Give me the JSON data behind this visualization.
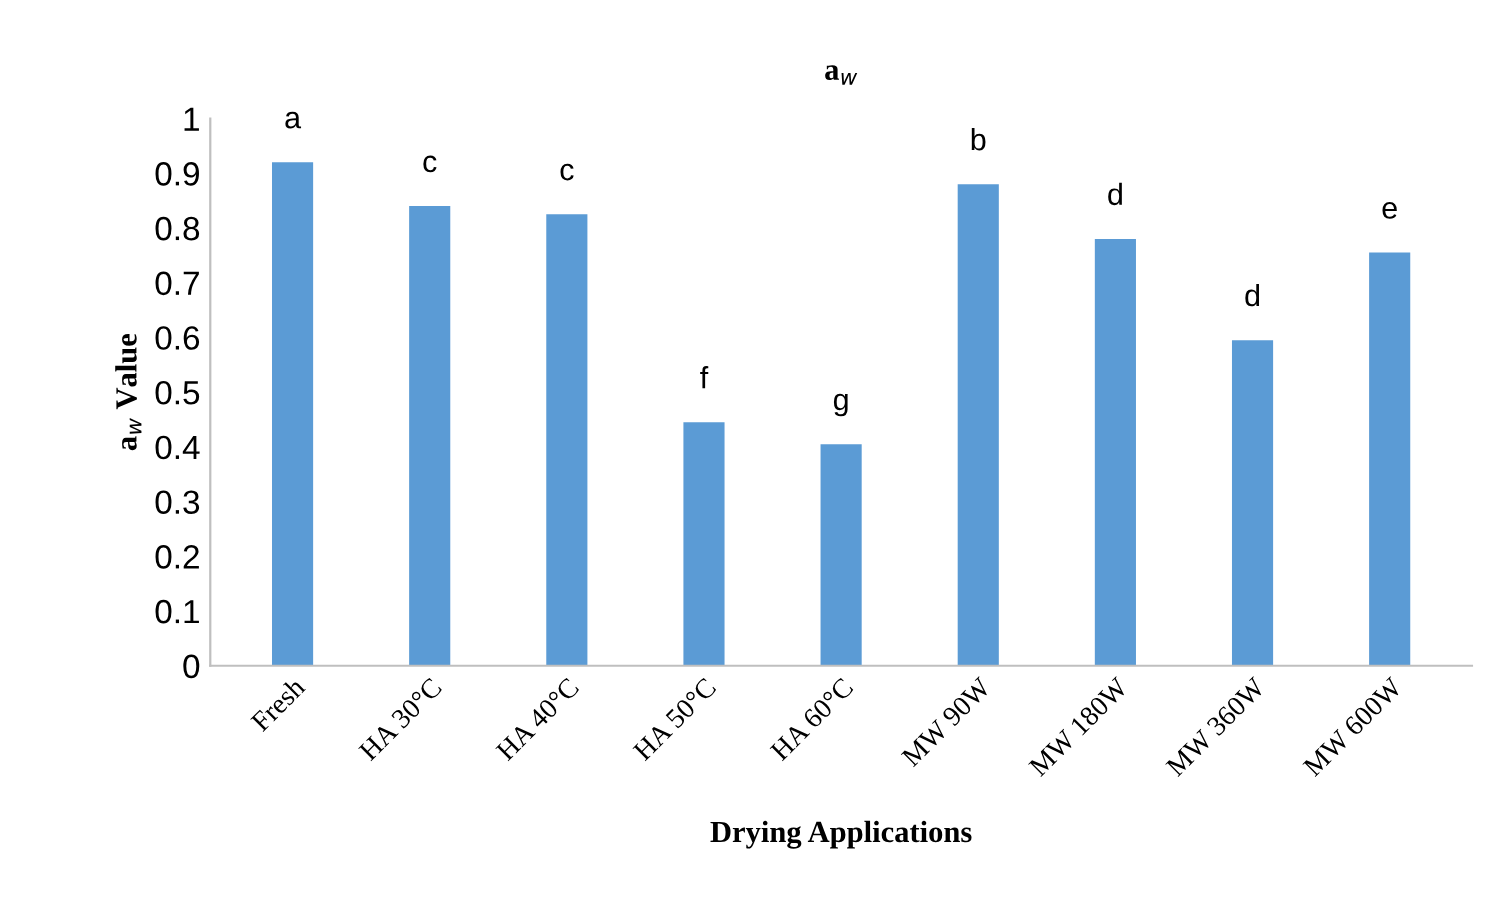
{
  "chart_data": {
    "type": "bar",
    "title": "a$_{w}$",
    "xlabel": "Drying Applications",
    "ylabel": "a$_{w}$ Value",
    "categories": [
      "Fresh",
      "HA 30°C",
      "HA 40°C",
      "HA 50°C",
      "HA 60°C",
      "MW 90W",
      "MW 180W",
      "MW 360W",
      "MW 600W"
    ],
    "values": [
      0.92,
      0.84,
      0.825,
      0.445,
      0.405,
      0.88,
      0.78,
      0.595,
      0.755
    ],
    "color": "#5b9bd5",
    "ylim": [
      0,
      1
    ],
    "yticks": [
      0,
      0.1,
      0.2,
      0.3,
      0.4,
      0.5,
      0.6,
      0.7,
      0.8,
      0.9,
      1
    ],
    "annotations": [
      {
        "text": "a",
        "x": "Fresh",
        "y": 0.92
      },
      {
        "text": "c",
        "x": "HA 30°C",
        "y": 0.84
      },
      {
        "text": "c",
        "x": "HA 40°C",
        "y": 0.825
      },
      {
        "text": "f",
        "x": "HA 50°C",
        "y": 0.445
      },
      {
        "text": "g",
        "x": "HA 60°C",
        "y": 0.405
      },
      {
        "text": "b",
        "x": "MW 90W",
        "y": 0.88
      },
      {
        "text": "d",
        "x": "MW 180W",
        "y": 0.78
      },
      {
        "text": "d",
        "x": "MW 360W",
        "y": 0.595
      },
      {
        "text": "e",
        "x": "MW 600W",
        "y": 0.755
      }
    ],
    "grid": false,
    "legend": false
  }
}
